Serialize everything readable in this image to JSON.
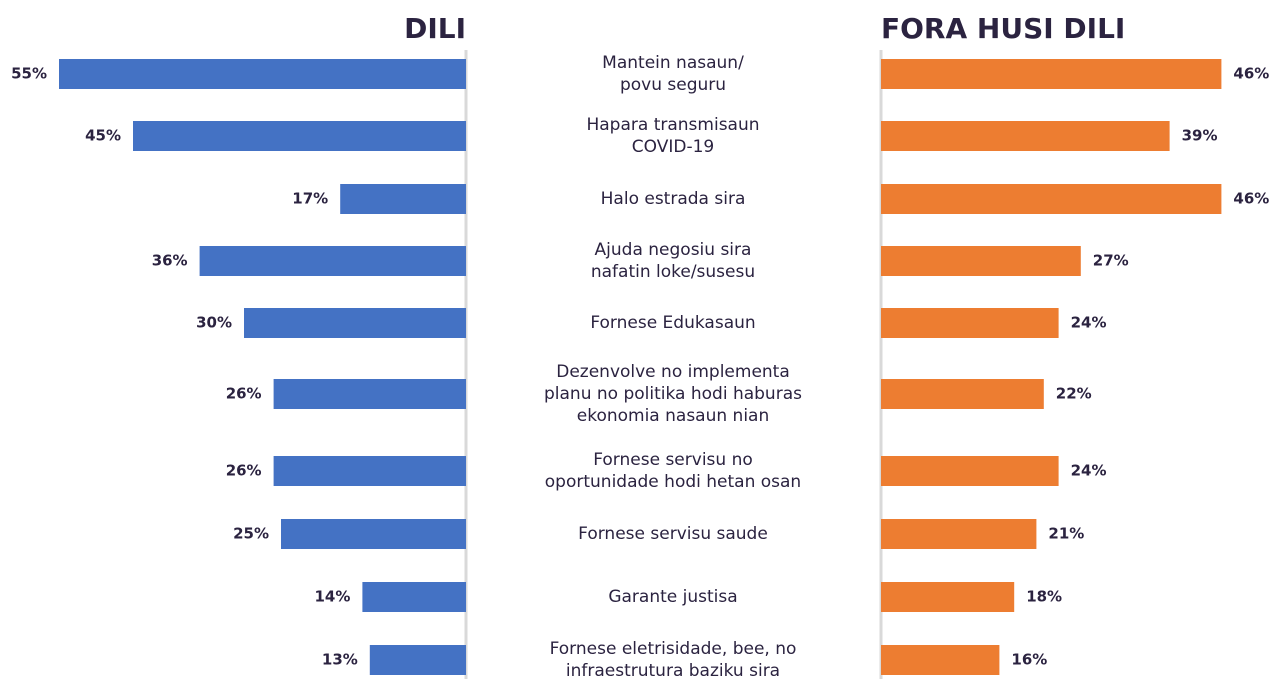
{
  "chart_data": {
    "type": "butterfly",
    "categories": [
      "Mantein nasaun/\npovu seguru",
      "Hapara transmisaun\nCOVID-19",
      "Halo estrada sira",
      "Ajuda negosiu sira\nnafatin loke/susesu",
      "Fornese Edukasaun",
      "Dezenvolve no implementa\nplanu no politika hodi haburas\nekonomia nasaun nian",
      "Fornese servisu no\noportunidade hodi hetan osan",
      "Fornese servisu saude",
      "Garante justisa",
      "Fornese eletrisidade, bee, no\ninfraestrutura baziku sira"
    ],
    "series": [
      {
        "name": "DILI",
        "color": "#4472c4",
        "values": [
          55,
          45,
          17,
          36,
          30,
          26,
          26,
          25,
          14,
          13
        ],
        "value_labels": [
          "55%",
          "45%",
          "17%",
          "36%",
          "30%",
          "26%",
          "26%",
          "25%",
          "14%",
          "13%"
        ]
      },
      {
        "name": "FORA HUSI DILI",
        "color": "#ed7d31",
        "values": [
          46,
          39,
          46,
          27,
          24,
          22,
          24,
          21,
          18,
          16
        ],
        "value_labels": [
          "46%",
          "39%",
          "46%",
          "27%",
          "24%",
          "22%",
          "24%",
          "21%",
          "18%",
          "16%"
        ]
      }
    ]
  }
}
